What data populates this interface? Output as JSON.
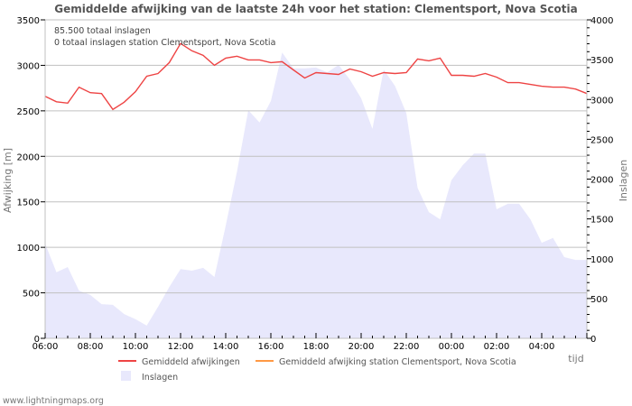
{
  "header": {
    "title": "Gemiddelde afwijking van de laatste 24h voor het station: Clementsport, Nova Scotia"
  },
  "info": {
    "line1": "85.500 totaal inslagen",
    "line2": "0 totaal inslagen station Clementsport, Nova Scotia"
  },
  "axes": {
    "left_title": "Afwijking  [m]",
    "right_title": "Inslagen",
    "x_title": "tijd",
    "left_ticks": [
      "0",
      "500",
      "1000",
      "1500",
      "2000",
      "2500",
      "3000",
      "3500"
    ],
    "right_ticks": [
      "0",
      "500",
      "1000",
      "1500",
      "2000",
      "2500",
      "3000",
      "3500",
      "4000"
    ],
    "x_ticks": [
      "06:00",
      "08:00",
      "10:00",
      "12:00",
      "14:00",
      "16:00",
      "18:00",
      "20:00",
      "22:00",
      "00:00",
      "02:00",
      "04:00"
    ]
  },
  "legend": {
    "items": [
      {
        "label": "Gemiddeld afwijkingen",
        "color": "#ee4444",
        "type": "line"
      },
      {
        "label": "Gemiddeld afwijking station Clementsport, Nova Scotia",
        "color": "#ff9944",
        "type": "line"
      },
      {
        "label": "Inslagen",
        "color": "#e8e8fc",
        "type": "area"
      }
    ]
  },
  "footer": {
    "credit": "www.lightningmaps.org"
  },
  "colors": {
    "line": "#ee4444",
    "station_line": "#ff9944",
    "area": "#e8e8fc",
    "grid": "#c0c0c0",
    "axis": "#c0c0c0"
  },
  "chart_data": {
    "type": "line",
    "title": "Gemiddelde afwijking van de laatste 24h voor het station: Clementsport, Nova Scotia",
    "xlabel": "tijd",
    "ylabel": "Afwijking  [m]",
    "y2label": "Inslagen",
    "ylim": [
      0,
      3500
    ],
    "y2lim": [
      0,
      4000
    ],
    "grid": true,
    "legend_position": "bottom",
    "x": [
      "06:00",
      "06:30",
      "07:00",
      "07:30",
      "08:00",
      "08:30",
      "09:00",
      "09:30",
      "10:00",
      "10:30",
      "11:00",
      "11:30",
      "12:00",
      "12:30",
      "13:00",
      "13:30",
      "14:00",
      "14:30",
      "15:00",
      "15:30",
      "16:00",
      "16:30",
      "17:00",
      "17:30",
      "18:00",
      "18:30",
      "19:00",
      "19:30",
      "20:00",
      "20:30",
      "21:00",
      "21:30",
      "22:00",
      "22:30",
      "23:00",
      "23:30",
      "00:00",
      "00:30",
      "01:00",
      "01:30",
      "02:00",
      "02:30",
      "03:00",
      "03:30",
      "04:00",
      "04:30",
      "05:00",
      "05:30",
      "06:00"
    ],
    "series": [
      {
        "name": "Gemiddeld afwijkingen",
        "axis": "left",
        "type": "line",
        "values": [
          2660,
          2600,
          2585,
          2760,
          2700,
          2690,
          2515,
          2595,
          2710,
          2880,
          2910,
          3030,
          3240,
          3160,
          3110,
          3000,
          3080,
          3100,
          3060,
          3060,
          3030,
          3040,
          2950,
          2860,
          2920,
          2910,
          2900,
          2960,
          2930,
          2880,
          2920,
          2910,
          2920,
          3070,
          3050,
          3080,
          2890,
          2890,
          2880,
          2910,
          2870,
          2810,
          2810,
          2790,
          2770,
          2760,
          2760,
          2740,
          2690
        ]
      },
      {
        "name": "Gemiddeld afwijking station Clementsport, Nova Scotia",
        "axis": "left",
        "type": "line",
        "values": []
      },
      {
        "name": "Inslagen",
        "axis": "right",
        "type": "area",
        "values": [
          1190,
          830,
          895,
          600,
          545,
          430,
          420,
          305,
          240,
          160,
          395,
          645,
          870,
          850,
          885,
          770,
          1415,
          2095,
          2865,
          2710,
          2980,
          3590,
          3390,
          3390,
          3400,
          3340,
          3435,
          3250,
          3015,
          2630,
          3375,
          3170,
          2830,
          1890,
          1585,
          1495,
          1985,
          2175,
          2320,
          2320,
          1620,
          1690,
          1690,
          1495,
          1200,
          1260,
          1020,
          985,
          985
        ]
      }
    ]
  }
}
